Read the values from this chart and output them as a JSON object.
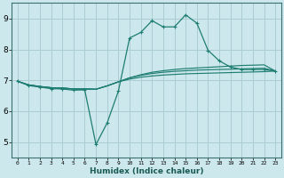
{
  "xlabel": "Humidex (Indice chaleur)",
  "background_color": "#cde8ec",
  "grid_color": "#aacdd3",
  "line_color": "#1e7d72",
  "x_values": [
    0,
    1,
    2,
    3,
    4,
    5,
    6,
    7,
    8,
    9,
    10,
    11,
    12,
    13,
    14,
    15,
    16,
    17,
    18,
    19,
    20,
    21,
    22,
    23
  ],
  "series1": [
    6.97,
    6.83,
    6.78,
    6.73,
    6.72,
    6.68,
    6.69,
    4.92,
    5.62,
    6.65,
    8.37,
    8.55,
    8.93,
    8.73,
    8.73,
    9.12,
    8.85,
    7.97,
    7.63,
    7.43,
    7.35,
    7.35,
    7.35,
    7.3
  ],
  "series2": [
    6.97,
    6.85,
    6.8,
    6.76,
    6.75,
    6.72,
    6.72,
    6.71,
    6.82,
    6.95,
    7.08,
    7.18,
    7.26,
    7.31,
    7.35,
    7.38,
    7.4,
    7.42,
    7.44,
    7.46,
    7.48,
    7.49,
    7.5,
    7.3
  ],
  "series3": [
    6.97,
    6.85,
    6.8,
    6.76,
    6.75,
    6.72,
    6.72,
    6.71,
    6.82,
    6.95,
    7.08,
    7.16,
    7.22,
    7.26,
    7.29,
    7.31,
    7.33,
    7.34,
    7.35,
    7.36,
    7.37,
    7.38,
    7.39,
    7.3
  ],
  "series4": [
    6.97,
    6.85,
    6.8,
    6.76,
    6.75,
    6.72,
    6.72,
    6.71,
    6.82,
    6.95,
    7.04,
    7.1,
    7.14,
    7.17,
    7.19,
    7.21,
    7.22,
    7.23,
    7.24,
    7.25,
    7.26,
    7.27,
    7.28,
    7.3
  ],
  "ylim": [
    4.5,
    9.5
  ],
  "xlim": [
    -0.5,
    23.5
  ],
  "yticks": [
    5,
    6,
    7,
    8,
    9
  ],
  "xticks": [
    0,
    1,
    2,
    3,
    4,
    5,
    6,
    7,
    8,
    9,
    10,
    11,
    12,
    13,
    14,
    15,
    16,
    17,
    18,
    19,
    20,
    21,
    22,
    23
  ]
}
